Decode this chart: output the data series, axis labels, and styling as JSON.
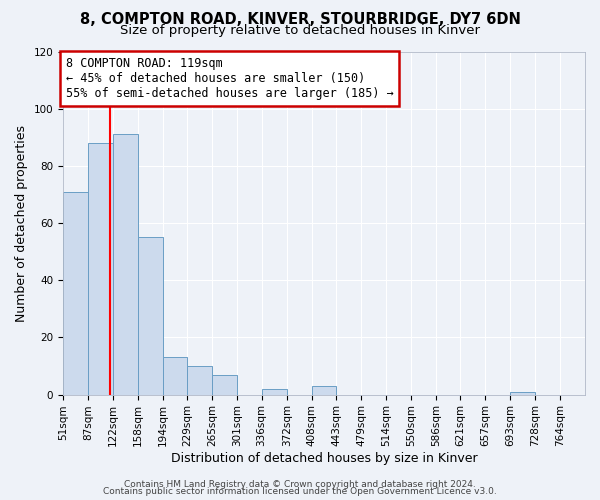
{
  "title_line1": "8, COMPTON ROAD, KINVER, STOURBRIDGE, DY7 6DN",
  "title_line2": "Size of property relative to detached houses in Kinver",
  "xlabel": "Distribution of detached houses by size in Kinver",
  "ylabel": "Number of detached properties",
  "bin_labels": [
    "51sqm",
    "87sqm",
    "122sqm",
    "158sqm",
    "194sqm",
    "229sqm",
    "265sqm",
    "301sqm",
    "336sqm",
    "372sqm",
    "408sqm",
    "443sqm",
    "479sqm",
    "514sqm",
    "550sqm",
    "586sqm",
    "621sqm",
    "657sqm",
    "693sqm",
    "728sqm",
    "764sqm"
  ],
  "bin_left_edges": [
    51,
    87,
    122,
    158,
    194,
    229,
    265,
    301,
    336,
    372,
    408,
    443,
    479,
    514,
    550,
    586,
    621,
    657,
    693,
    728,
    764
  ],
  "bin_widths": [
    36,
    35,
    36,
    36,
    35,
    36,
    36,
    35,
    36,
    36,
    35,
    36,
    35,
    36,
    36,
    35,
    36,
    36,
    35,
    36,
    36
  ],
  "bar_heights": [
    71,
    88,
    91,
    55,
    13,
    10,
    7,
    0,
    2,
    0,
    3,
    0,
    0,
    0,
    0,
    0,
    0,
    0,
    1,
    0,
    0
  ],
  "bar_color": "#ccdaed",
  "bar_edge_color": "#6a9ec5",
  "red_line_x": 119,
  "annotation_line1": "8 COMPTON ROAD: 119sqm",
  "annotation_line2": "← 45% of detached houses are smaller (150)",
  "annotation_line3": "55% of semi-detached houses are larger (185) →",
  "annotation_box_facecolor": "#ffffff",
  "annotation_box_edgecolor": "#cc0000",
  "ylim": [
    0,
    120
  ],
  "yticks": [
    0,
    20,
    40,
    60,
    80,
    100,
    120
  ],
  "footer_line1": "Contains HM Land Registry data © Crown copyright and database right 2024.",
  "footer_line2": "Contains public sector information licensed under the Open Government Licence v3.0.",
  "background_color": "#eef2f8",
  "grid_color": "#ffffff",
  "title_fontsize": 10.5,
  "subtitle_fontsize": 9.5,
  "axis_label_fontsize": 9,
  "tick_fontsize": 7.5,
  "annotation_fontsize": 8.5,
  "footer_fontsize": 6.5
}
